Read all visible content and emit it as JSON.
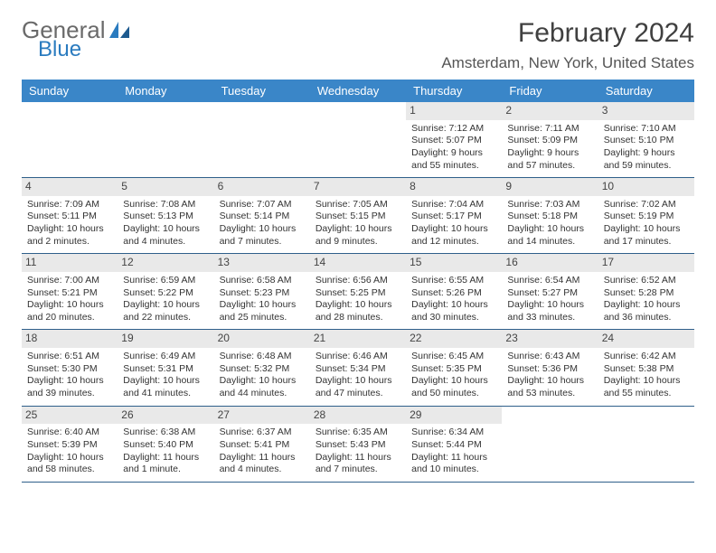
{
  "logo": {
    "general": "General",
    "blue": "Blue"
  },
  "title": "February 2024",
  "location": "Amsterdam, New York, United States",
  "colors": {
    "header_bg": "#3a86c8",
    "header_text": "#ffffff",
    "daynum_bg": "#e9e9e9",
    "row_border": "#2f5f8a",
    "logo_gray": "#6a6a6a",
    "logo_blue": "#2a7bbf"
  },
  "day_names": [
    "Sunday",
    "Monday",
    "Tuesday",
    "Wednesday",
    "Thursday",
    "Friday",
    "Saturday"
  ],
  "weeks": [
    [
      {
        "n": "",
        "empty": true
      },
      {
        "n": "",
        "empty": true
      },
      {
        "n": "",
        "empty": true
      },
      {
        "n": "",
        "empty": true
      },
      {
        "n": "1",
        "sr": "Sunrise: 7:12 AM",
        "ss": "Sunset: 5:07 PM",
        "dl": "Daylight: 9 hours and 55 minutes."
      },
      {
        "n": "2",
        "sr": "Sunrise: 7:11 AM",
        "ss": "Sunset: 5:09 PM",
        "dl": "Daylight: 9 hours and 57 minutes."
      },
      {
        "n": "3",
        "sr": "Sunrise: 7:10 AM",
        "ss": "Sunset: 5:10 PM",
        "dl": "Daylight: 9 hours and 59 minutes."
      }
    ],
    [
      {
        "n": "4",
        "sr": "Sunrise: 7:09 AM",
        "ss": "Sunset: 5:11 PM",
        "dl": "Daylight: 10 hours and 2 minutes."
      },
      {
        "n": "5",
        "sr": "Sunrise: 7:08 AM",
        "ss": "Sunset: 5:13 PM",
        "dl": "Daylight: 10 hours and 4 minutes."
      },
      {
        "n": "6",
        "sr": "Sunrise: 7:07 AM",
        "ss": "Sunset: 5:14 PM",
        "dl": "Daylight: 10 hours and 7 minutes."
      },
      {
        "n": "7",
        "sr": "Sunrise: 7:05 AM",
        "ss": "Sunset: 5:15 PM",
        "dl": "Daylight: 10 hours and 9 minutes."
      },
      {
        "n": "8",
        "sr": "Sunrise: 7:04 AM",
        "ss": "Sunset: 5:17 PM",
        "dl": "Daylight: 10 hours and 12 minutes."
      },
      {
        "n": "9",
        "sr": "Sunrise: 7:03 AM",
        "ss": "Sunset: 5:18 PM",
        "dl": "Daylight: 10 hours and 14 minutes."
      },
      {
        "n": "10",
        "sr": "Sunrise: 7:02 AM",
        "ss": "Sunset: 5:19 PM",
        "dl": "Daylight: 10 hours and 17 minutes."
      }
    ],
    [
      {
        "n": "11",
        "sr": "Sunrise: 7:00 AM",
        "ss": "Sunset: 5:21 PM",
        "dl": "Daylight: 10 hours and 20 minutes."
      },
      {
        "n": "12",
        "sr": "Sunrise: 6:59 AM",
        "ss": "Sunset: 5:22 PM",
        "dl": "Daylight: 10 hours and 22 minutes."
      },
      {
        "n": "13",
        "sr": "Sunrise: 6:58 AM",
        "ss": "Sunset: 5:23 PM",
        "dl": "Daylight: 10 hours and 25 minutes."
      },
      {
        "n": "14",
        "sr": "Sunrise: 6:56 AM",
        "ss": "Sunset: 5:25 PM",
        "dl": "Daylight: 10 hours and 28 minutes."
      },
      {
        "n": "15",
        "sr": "Sunrise: 6:55 AM",
        "ss": "Sunset: 5:26 PM",
        "dl": "Daylight: 10 hours and 30 minutes."
      },
      {
        "n": "16",
        "sr": "Sunrise: 6:54 AM",
        "ss": "Sunset: 5:27 PM",
        "dl": "Daylight: 10 hours and 33 minutes."
      },
      {
        "n": "17",
        "sr": "Sunrise: 6:52 AM",
        "ss": "Sunset: 5:28 PM",
        "dl": "Daylight: 10 hours and 36 minutes."
      }
    ],
    [
      {
        "n": "18",
        "sr": "Sunrise: 6:51 AM",
        "ss": "Sunset: 5:30 PM",
        "dl": "Daylight: 10 hours and 39 minutes."
      },
      {
        "n": "19",
        "sr": "Sunrise: 6:49 AM",
        "ss": "Sunset: 5:31 PM",
        "dl": "Daylight: 10 hours and 41 minutes."
      },
      {
        "n": "20",
        "sr": "Sunrise: 6:48 AM",
        "ss": "Sunset: 5:32 PM",
        "dl": "Daylight: 10 hours and 44 minutes."
      },
      {
        "n": "21",
        "sr": "Sunrise: 6:46 AM",
        "ss": "Sunset: 5:34 PM",
        "dl": "Daylight: 10 hours and 47 minutes."
      },
      {
        "n": "22",
        "sr": "Sunrise: 6:45 AM",
        "ss": "Sunset: 5:35 PM",
        "dl": "Daylight: 10 hours and 50 minutes."
      },
      {
        "n": "23",
        "sr": "Sunrise: 6:43 AM",
        "ss": "Sunset: 5:36 PM",
        "dl": "Daylight: 10 hours and 53 minutes."
      },
      {
        "n": "24",
        "sr": "Sunrise: 6:42 AM",
        "ss": "Sunset: 5:38 PM",
        "dl": "Daylight: 10 hours and 55 minutes."
      }
    ],
    [
      {
        "n": "25",
        "sr": "Sunrise: 6:40 AM",
        "ss": "Sunset: 5:39 PM",
        "dl": "Daylight: 10 hours and 58 minutes."
      },
      {
        "n": "26",
        "sr": "Sunrise: 6:38 AM",
        "ss": "Sunset: 5:40 PM",
        "dl": "Daylight: 11 hours and 1 minute."
      },
      {
        "n": "27",
        "sr": "Sunrise: 6:37 AM",
        "ss": "Sunset: 5:41 PM",
        "dl": "Daylight: 11 hours and 4 minutes."
      },
      {
        "n": "28",
        "sr": "Sunrise: 6:35 AM",
        "ss": "Sunset: 5:43 PM",
        "dl": "Daylight: 11 hours and 7 minutes."
      },
      {
        "n": "29",
        "sr": "Sunrise: 6:34 AM",
        "ss": "Sunset: 5:44 PM",
        "dl": "Daylight: 11 hours and 10 minutes."
      },
      {
        "n": "",
        "empty": true
      },
      {
        "n": "",
        "empty": true
      }
    ]
  ]
}
